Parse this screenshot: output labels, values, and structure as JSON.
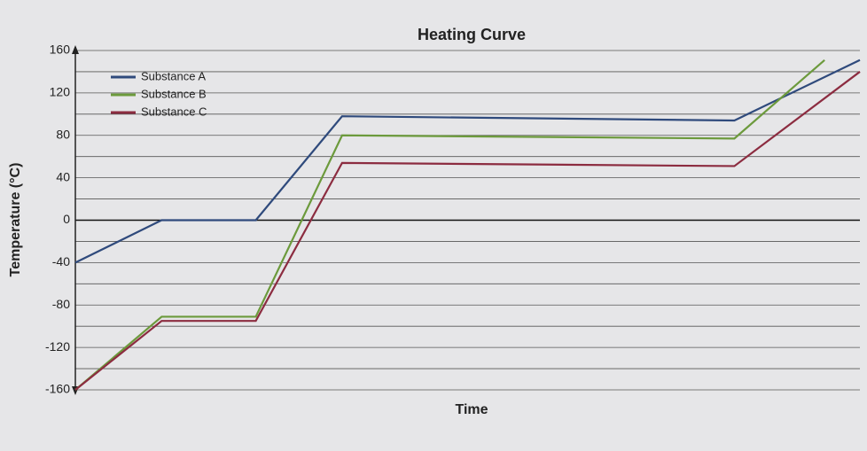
{
  "chart_data": {
    "type": "line",
    "title": "Heating Curve",
    "x_label": "Time",
    "y_label": "Temperature (°C)",
    "xlim": [
      0,
      100
    ],
    "ylim": [
      -160,
      160
    ],
    "yticks": [
      -160,
      -120,
      -80,
      -40,
      0,
      40,
      80,
      120,
      160
    ],
    "grid": true,
    "legend": "top-left",
    "series": [
      {
        "name": "Substance A",
        "color": "#2f4a7c",
        "x": [
          0,
          11,
          23,
          34,
          84,
          100
        ],
        "values": [
          -40,
          0,
          0,
          98,
          94,
          151
        ]
      },
      {
        "name": "Substance B",
        "color": "#6c9a3c",
        "x": [
          0,
          11,
          23,
          34,
          84,
          95.5
        ],
        "values": [
          -160,
          -91,
          -91,
          80,
          77,
          151
        ]
      },
      {
        "name": "Substance C",
        "color": "#8c2c40",
        "x": [
          0,
          11,
          23,
          34,
          84,
          100
        ],
        "values": [
          -160,
          -95,
          -95,
          54,
          51,
          140
        ]
      }
    ]
  }
}
